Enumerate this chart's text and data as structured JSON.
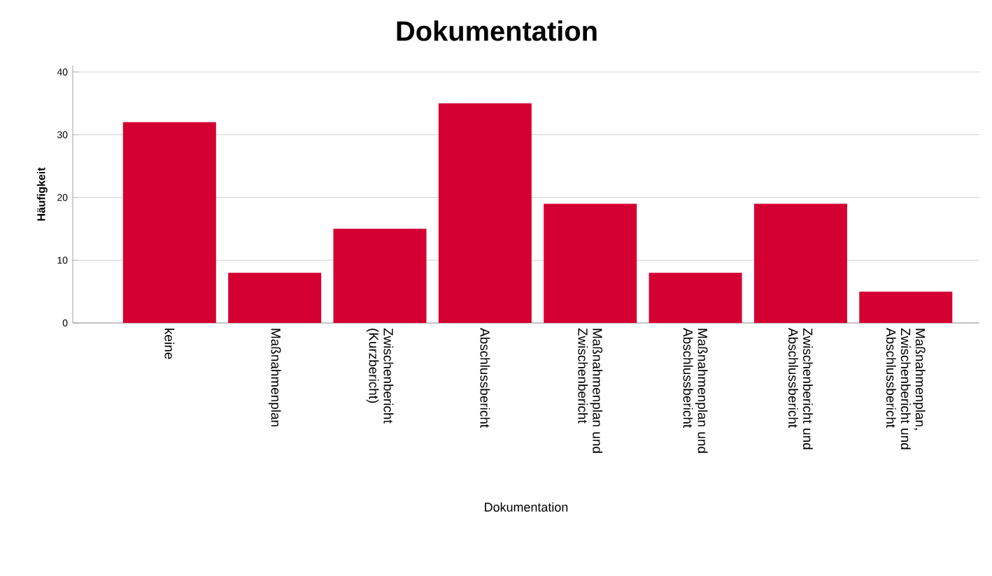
{
  "chart_data": {
    "type": "bar",
    "title": "Dokumentation",
    "xlabel": "Dokumentation",
    "ylabel": "Häufigkeit",
    "categories": [
      "keine",
      "Maßnahmenplan",
      "Zwischenbericht (Kurzbericht)",
      "Abschlussbericht",
      "Maßnahmenplan und Zwischenbericht",
      "Maßnahmenplan und Abschlussbericht",
      "Zwischenbericht und Abschlussbericht",
      "Maßnahmenplan, Zwischenbericht und Abschlussbericht"
    ],
    "values": [
      32,
      8,
      15,
      35,
      19,
      8,
      19,
      5
    ],
    "color": "#d50032",
    "ylim": [
      0,
      41
    ],
    "yticks": [
      0,
      10,
      20,
      30,
      40
    ],
    "grid": "y"
  }
}
